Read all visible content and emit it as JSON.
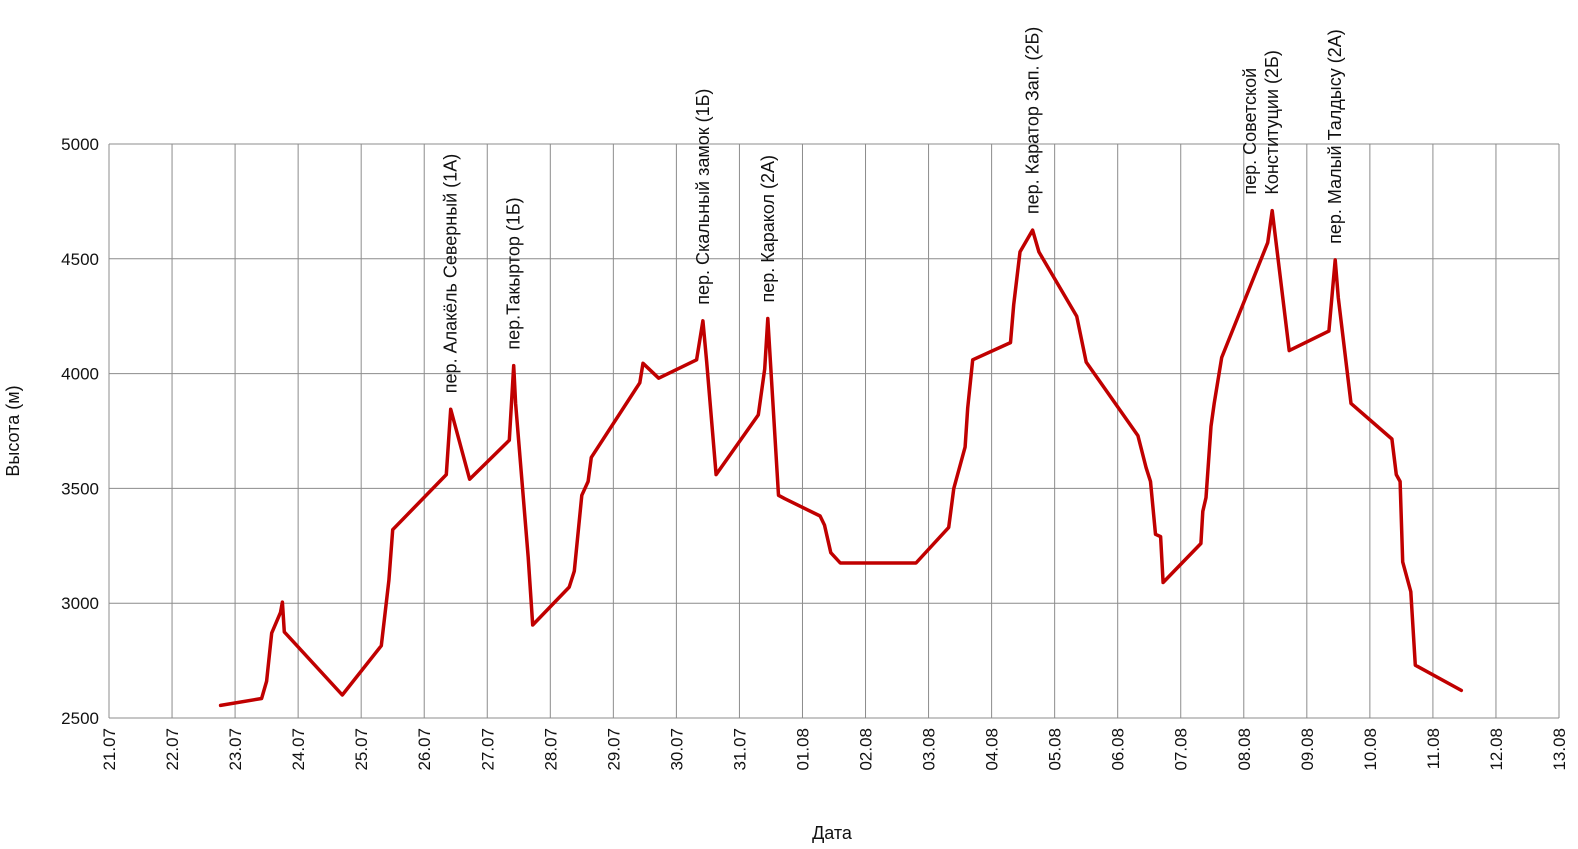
{
  "chart_data": {
    "type": "line",
    "title": "",
    "xlabel": "Дата",
    "ylabel": "Высота (м)",
    "grid": true,
    "legend": "none",
    "line_color": "#C00000",
    "grid_color": "#8C8C8C",
    "x_start_label": "21.07",
    "xlim": [
      0,
      23
    ],
    "ylim": [
      2500,
      5000
    ],
    "yticks": [
      2500,
      3000,
      3500,
      4000,
      4500,
      5000
    ],
    "xtick_labels": [
      "21.07",
      "22.07",
      "23.07",
      "24.07",
      "25.07",
      "26.07",
      "27.07",
      "28.07",
      "29.07",
      "30.07",
      "31.07",
      "01.08",
      "02.08",
      "03.08",
      "04.08",
      "05.08",
      "06.08",
      "07.08",
      "08.08",
      "09.08",
      "10.08",
      "11.08",
      "12.08",
      "13.08"
    ],
    "series": [
      {
        "points": [
          [
            1.77,
            2555
          ],
          [
            2.42,
            2585
          ],
          [
            2.5,
            2660
          ],
          [
            2.58,
            2870
          ],
          [
            2.72,
            2960
          ],
          [
            2.75,
            3005
          ],
          [
            2.78,
            2875
          ],
          [
            3.7,
            2600
          ],
          [
            4.32,
            2815
          ],
          [
            4.44,
            3100
          ],
          [
            4.5,
            3320
          ],
          [
            5.35,
            3560
          ],
          [
            5.42,
            3845
          ],
          [
            5.72,
            3540
          ],
          [
            6.35,
            3710
          ],
          [
            6.42,
            4035
          ],
          [
            6.45,
            3870
          ],
          [
            6.65,
            3200
          ],
          [
            6.72,
            2905
          ],
          [
            7.3,
            3070
          ],
          [
            7.38,
            3140
          ],
          [
            7.5,
            3470
          ],
          [
            7.6,
            3530
          ],
          [
            7.65,
            3635
          ],
          [
            8.42,
            3960
          ],
          [
            8.47,
            4045
          ],
          [
            8.72,
            3980
          ],
          [
            9.32,
            4060
          ],
          [
            9.42,
            4230
          ],
          [
            9.48,
            4050
          ],
          [
            9.63,
            3560
          ],
          [
            10.3,
            3820
          ],
          [
            10.4,
            4020
          ],
          [
            10.45,
            4240
          ],
          [
            10.62,
            3470
          ],
          [
            10.72,
            3455
          ],
          [
            11.28,
            3380
          ],
          [
            11.35,
            3340
          ],
          [
            11.45,
            3220
          ],
          [
            11.6,
            3175
          ],
          [
            12.8,
            3175
          ],
          [
            13.32,
            3330
          ],
          [
            13.4,
            3500
          ],
          [
            13.58,
            3680
          ],
          [
            13.62,
            3850
          ],
          [
            13.7,
            4060
          ],
          [
            14.3,
            4135
          ],
          [
            14.35,
            4300
          ],
          [
            14.45,
            4530
          ],
          [
            14.65,
            4625
          ],
          [
            14.75,
            4530
          ],
          [
            15.35,
            4250
          ],
          [
            15.5,
            4050
          ],
          [
            16.32,
            3730
          ],
          [
            16.45,
            3590
          ],
          [
            16.52,
            3530
          ],
          [
            16.6,
            3300
          ],
          [
            16.68,
            3290
          ],
          [
            16.72,
            3090
          ],
          [
            17.32,
            3260
          ],
          [
            17.35,
            3400
          ],
          [
            17.4,
            3460
          ],
          [
            17.48,
            3770
          ],
          [
            17.53,
            3870
          ],
          [
            17.65,
            4070
          ],
          [
            18.38,
            4570
          ],
          [
            18.45,
            4710
          ],
          [
            18.72,
            4100
          ],
          [
            19.35,
            4185
          ],
          [
            19.45,
            4495
          ],
          [
            19.5,
            4330
          ],
          [
            19.7,
            3870
          ],
          [
            20.35,
            3715
          ],
          [
            20.42,
            3560
          ],
          [
            20.48,
            3530
          ],
          [
            20.52,
            3180
          ],
          [
            20.65,
            3050
          ],
          [
            20.72,
            2730
          ],
          [
            21.45,
            2620
          ]
        ]
      }
    ],
    "annotations": [
      {
        "text": "пер. Алакёль Северный (1А)",
        "x": 5.42,
        "y": 3845
      },
      {
        "text": "пер.Такыртор (1Б)",
        "x": 6.42,
        "y": 4035
      },
      {
        "text": "пер. Скальный замок (1Б)",
        "x": 9.42,
        "y": 4230
      },
      {
        "text": "пер. Каракол (2А)",
        "x": 10.45,
        "y": 4240
      },
      {
        "text": "пер. Каратор Зап. (2Б)",
        "x": 14.65,
        "y": 4625
      },
      {
        "text": "пер. Советской",
        "x": 18.45,
        "y": 4710
      },
      {
        "text": "Конституции (2Б)",
        "x": 18.45,
        "y": 4710
      },
      {
        "text": "пер. Малый Талдысу (2А)",
        "x": 19.45,
        "y": 4495
      }
    ]
  }
}
